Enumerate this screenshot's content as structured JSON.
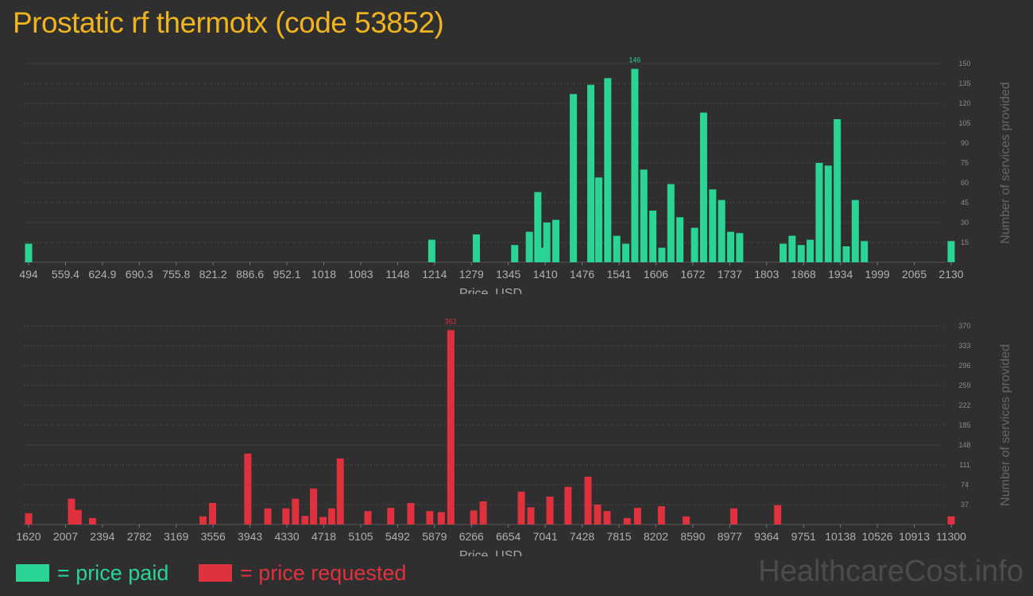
{
  "title": "Prostatic rf thermotx (code 53852)",
  "legend": {
    "paid": {
      "label": "= price paid",
      "color": "#2ad494"
    },
    "requested": {
      "label": "= price requested",
      "color": "#e0313f"
    }
  },
  "watermark": "HealthcareCost.info",
  "chart_data": [
    {
      "type": "bar",
      "color": "#2ad494",
      "xlabel": "Price, USD",
      "ylabel": "Number of services provided",
      "xlim": [
        494,
        2130
      ],
      "ylim": [
        0,
        150
      ],
      "x_ticks": [
        "494",
        "559.4",
        "624.9",
        "690.3",
        "755.8",
        "821.2",
        "886.6",
        "952.1",
        "1018",
        "1083",
        "1148",
        "1214",
        "1279",
        "1345",
        "1410",
        "1476",
        "1541",
        "1606",
        "1672",
        "1737",
        "1803",
        "1868",
        "1934",
        "1999",
        "2065",
        "2130"
      ],
      "y_ticks": [
        "15",
        "30",
        "45",
        "60",
        "75",
        "90",
        "105",
        "120",
        "135",
        "150"
      ],
      "max_label": "146",
      "x": [
        494,
        1209,
        1288,
        1356,
        1382,
        1397,
        1406,
        1413,
        1429,
        1460,
        1491,
        1505,
        1521,
        1537,
        1553,
        1569,
        1585,
        1601,
        1617,
        1633,
        1649,
        1675,
        1691,
        1707,
        1723,
        1739,
        1755,
        1832,
        1848,
        1864,
        1880,
        1896,
        1912,
        1928,
        1944,
        1960,
        1976,
        1992,
        2130
      ],
      "values": [
        14,
        17,
        21,
        13,
        23,
        53,
        11,
        30,
        32,
        127,
        134,
        64,
        139,
        20,
        14,
        146,
        70,
        39,
        11,
        59,
        34,
        26,
        113,
        55,
        47,
        23,
        22,
        14,
        20,
        13,
        17,
        75,
        73,
        108,
        12,
        47,
        16,
        0,
        16
      ]
    },
    {
      "type": "bar",
      "color": "#e0313f",
      "xlabel": "Price, USD",
      "ylabel": "Number of services provided",
      "xlim": [
        1620,
        11300
      ],
      "ylim": [
        0,
        370
      ],
      "x_ticks": [
        "1620",
        "2007",
        "2394",
        "2782",
        "3169",
        "3556",
        "3943",
        "4330",
        "4718",
        "5105",
        "5492",
        "5879",
        "6266",
        "6654",
        "7041",
        "7428",
        "7815",
        "8202",
        "8590",
        "8977",
        "9364",
        "9751",
        "10138",
        "10526",
        "10913",
        "11300"
      ],
      "y_ticks": [
        "37",
        "74",
        "111",
        "148",
        "185",
        "222",
        "259",
        "296",
        "333",
        "370"
      ],
      "max_label": "362",
      "x": [
        1620,
        2070,
        2140,
        2290,
        3450,
        3550,
        3920,
        4130,
        4320,
        4420,
        4520,
        4610,
        4710,
        4800,
        4890,
        5180,
        5420,
        5630,
        5830,
        5950,
        6050,
        6290,
        6390,
        6790,
        6890,
        7090,
        7280,
        7490,
        7590,
        7690,
        7900,
        8010,
        8260,
        8520,
        9020,
        9480,
        11300
      ],
      "values": [
        21,
        48,
        27,
        12,
        15,
        40,
        132,
        30,
        30,
        48,
        16,
        67,
        14,
        30,
        123,
        25,
        31,
        40,
        25,
        23,
        362,
        26,
        43,
        61,
        32,
        52,
        70,
        89,
        37,
        25,
        12,
        31,
        34,
        15,
        30,
        36,
        15
      ]
    }
  ]
}
